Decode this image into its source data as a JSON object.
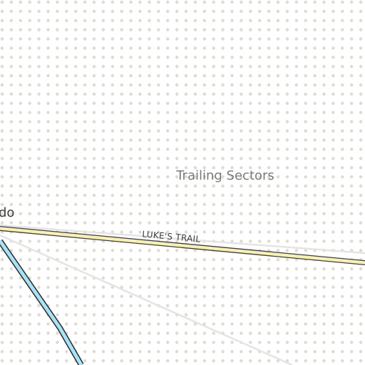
{
  "map": {
    "colors": {
      "background": "#ffffff",
      "dot": "#dedad0",
      "road_fill": "#f6f0b6",
      "road_casing": "#3e3e3e",
      "river_fill": "#a8e2f5",
      "river_casing": "#2a2a2a",
      "path": "#e4e4e4"
    },
    "labels": {
      "area": "Trailing Sectors",
      "place_partial": "do",
      "road": "LUKE'S TRAIL"
    }
  }
}
